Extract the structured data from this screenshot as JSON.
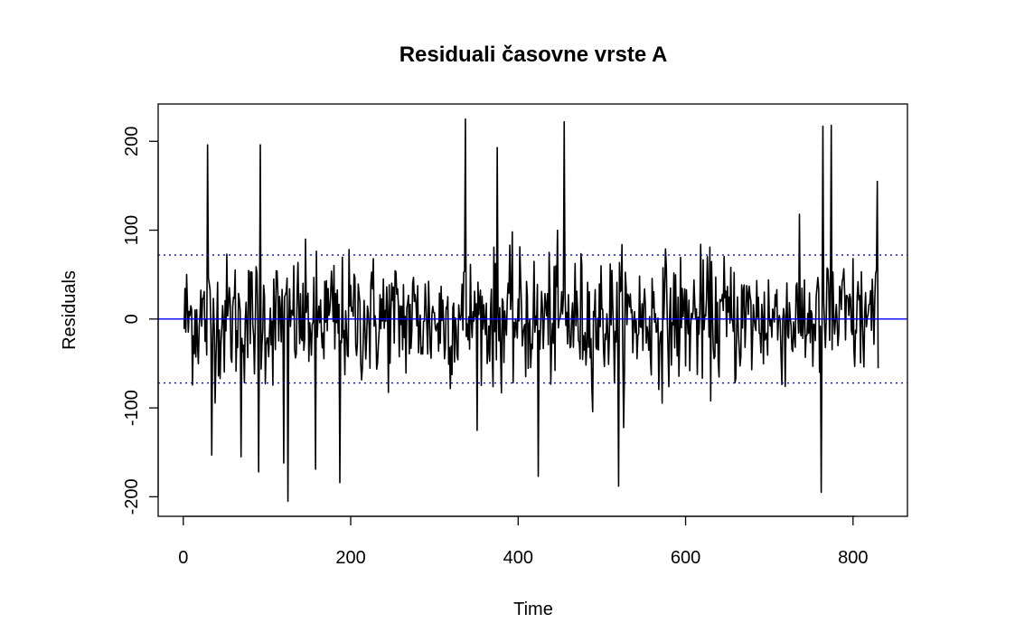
{
  "chart_data": {
    "type": "line",
    "title": "Residuali časovne vrste A",
    "xlabel": "Time",
    "ylabel": "Residuals",
    "xlim": [
      -30,
      865
    ],
    "ylim": [
      -222,
      242
    ],
    "x_ticks": [
      0,
      200,
      400,
      600,
      800
    ],
    "x_tick_labels": [
      "0",
      "200",
      "400",
      "600",
      "800"
    ],
    "y_ticks": [
      -200,
      -100,
      0,
      100,
      200
    ],
    "y_tick_labels": [
      "-200",
      "-100",
      "0",
      "100",
      "200"
    ],
    "n_points": 830,
    "grid": false,
    "legend": "none",
    "series": [
      {
        "color": "#000000",
        "x_start": 1,
        "x_step": 1,
        "amplitude_sd": 36,
        "notable_points": [
          {
            "x": 29,
            "y": 196
          },
          {
            "x": 34,
            "y": -153
          },
          {
            "x": 69,
            "y": -155
          },
          {
            "x": 90,
            "y": -172
          },
          {
            "x": 92,
            "y": 196
          },
          {
            "x": 120,
            "y": -162
          },
          {
            "x": 125,
            "y": -205
          },
          {
            "x": 158,
            "y": -169
          },
          {
            "x": 187,
            "y": -184
          },
          {
            "x": 337,
            "y": 225
          },
          {
            "x": 375,
            "y": 193
          },
          {
            "x": 424,
            "y": -177
          },
          {
            "x": 455,
            "y": 222
          },
          {
            "x": 520,
            "y": -188
          },
          {
            "x": 762,
            "y": -195
          },
          {
            "x": 764,
            "y": 217
          },
          {
            "x": 774,
            "y": 218
          },
          {
            "x": 829,
            "y": 155
          }
        ]
      }
    ],
    "reference_lines": [
      {
        "y": 0,
        "color": "#0000ff",
        "style": "solid"
      },
      {
        "y": 72,
        "color": "#0000ff",
        "style": "dotted"
      },
      {
        "y": -72,
        "color": "#0000ff",
        "style": "dotted"
      }
    ]
  }
}
